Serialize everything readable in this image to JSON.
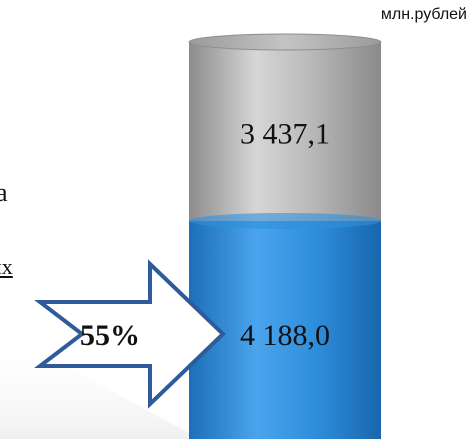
{
  "unit_label": "млн.рублей",
  "background_text": {
    "fragment_a": "а",
    "fragment_b": "их"
  },
  "arrow_label": "55%",
  "colors": {
    "top_segment": "#a8a8a8",
    "bottom_segment": "#2b8ad8",
    "arrow_outline": "#2f5b9a",
    "arrow_fill": "#ffffff"
  },
  "chart_data": {
    "type": "bar",
    "categories": [
      ""
    ],
    "series": [
      {
        "values": [
          4188.0
        ]
      },
      {
        "values": [
          3437.1
        ]
      }
    ],
    "data_labels": [
      "4 188,0",
      "3 437,1"
    ],
    "stacked": true,
    "shape": "cylinder",
    "unit": "млн.рублей",
    "title": "",
    "xlabel": "",
    "ylabel": "",
    "annotation": "55%"
  }
}
